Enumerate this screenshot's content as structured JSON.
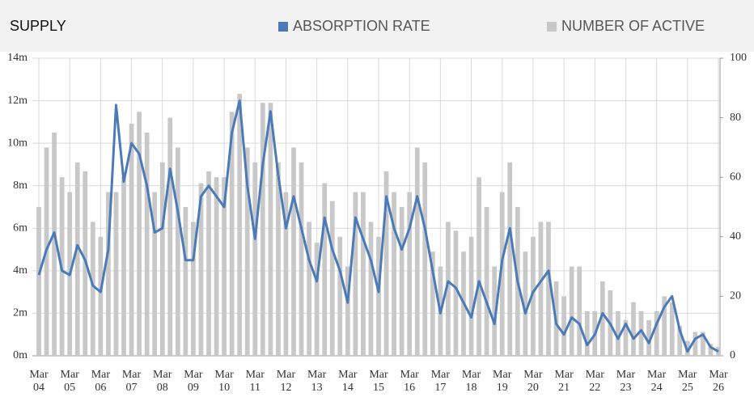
{
  "chart_data": {
    "type": "combo",
    "title": "SUPPLY",
    "legend": "top",
    "grid": true,
    "categories": [
      "Mar 04",
      null,
      null,
      null,
      "Mar 05",
      null,
      null,
      null,
      "Mar 06",
      null,
      null,
      null,
      "Mar 07",
      null,
      null,
      null,
      "Mar 08",
      null,
      null,
      null,
      "Mar 09",
      null,
      null,
      null,
      "Mar 10",
      null,
      null,
      null,
      "Mar 11",
      null,
      null,
      null,
      "Mar 12",
      null,
      null,
      null,
      "Mar 13",
      null,
      null,
      null,
      "Mar 14",
      null,
      null,
      null,
      "Mar 15",
      null,
      null,
      null,
      "Mar 16",
      null,
      null,
      null,
      "Mar 17",
      null,
      null,
      null,
      "Mar 18",
      null,
      null,
      null,
      "Mar 19",
      null,
      null,
      null,
      "Mar 20",
      null,
      null,
      null,
      "Mar 21",
      null,
      null,
      null,
      "Mar 22",
      null,
      null,
      null,
      "Mar 23",
      null,
      null,
      null,
      "Mar 24",
      null,
      null,
      null,
      "Mar 25",
      null,
      null,
      null,
      "Mar 26"
    ],
    "series": [
      {
        "name": "ABSORPTION RATE",
        "type": "line",
        "axis": "y",
        "color": "#4a7ab8",
        "values": [
          3.8,
          5.0,
          5.8,
          4.0,
          3.8,
          5.2,
          4.5,
          3.3,
          3.0,
          5.0,
          11.8,
          8.2,
          10.0,
          9.5,
          8.0,
          5.8,
          6.0,
          8.8,
          6.8,
          4.5,
          4.5,
          7.5,
          8.0,
          7.5,
          7.0,
          10.5,
          12.0,
          8.0,
          5.5,
          9.0,
          11.5,
          8.5,
          6.0,
          7.5,
          6.0,
          4.5,
          3.5,
          6.5,
          5.0,
          4.0,
          2.5,
          6.5,
          5.5,
          4.5,
          3.0,
          7.5,
          6.0,
          5.0,
          6.0,
          7.5,
          6.0,
          4.0,
          2.0,
          3.5,
          3.2,
          2.5,
          1.8,
          3.5,
          2.5,
          1.5,
          4.5,
          6.0,
          3.5,
          2.0,
          3.0,
          3.5,
          4.0,
          1.5,
          1.0,
          1.8,
          1.5,
          0.5,
          1.0,
          2.0,
          1.5,
          0.8,
          1.5,
          0.8,
          1.2,
          0.6,
          1.5,
          2.3,
          2.8,
          1.2,
          0.2,
          0.8,
          1.0,
          0.4,
          0.2
        ]
      },
      {
        "name": "NUMBER OF ACTIVE",
        "type": "bar",
        "axis": "y2",
        "color": "#c8c8c8",
        "values": [
          50,
          70,
          75,
          60,
          55,
          65,
          62,
          45,
          40,
          55,
          55,
          60,
          78,
          82,
          75,
          55,
          65,
          80,
          70,
          50,
          45,
          58,
          62,
          60,
          60,
          82,
          88,
          70,
          65,
          85,
          85,
          65,
          55,
          70,
          65,
          45,
          38,
          58,
          52,
          40,
          30,
          55,
          55,
          45,
          40,
          62,
          55,
          50,
          55,
          70,
          65,
          35,
          30,
          45,
          42,
          35,
          40,
          60,
          50,
          30,
          55,
          65,
          50,
          35,
          40,
          45,
          45,
          25,
          20,
          30,
          30,
          15,
          15,
          25,
          22,
          15,
          12,
          18,
          15,
          12,
          15,
          20,
          18,
          10,
          5,
          8,
          8,
          4,
          3
        ]
      }
    ],
    "ylim": [
      0,
      14
    ],
    "yticks": [
      {
        "value": 0,
        "label": "0m"
      },
      {
        "value": 2,
        "label": "2m"
      },
      {
        "value": 4,
        "label": "4m"
      },
      {
        "value": 6,
        "label": "6m"
      },
      {
        "value": 8,
        "label": "8m"
      },
      {
        "value": 10,
        "label": "10m"
      },
      {
        "value": 12,
        "label": "12m"
      },
      {
        "value": 14,
        "label": "14m"
      }
    ],
    "y2lim": [
      0,
      100
    ],
    "y2ticks": [
      0,
      20,
      40,
      60,
      80,
      100
    ]
  }
}
